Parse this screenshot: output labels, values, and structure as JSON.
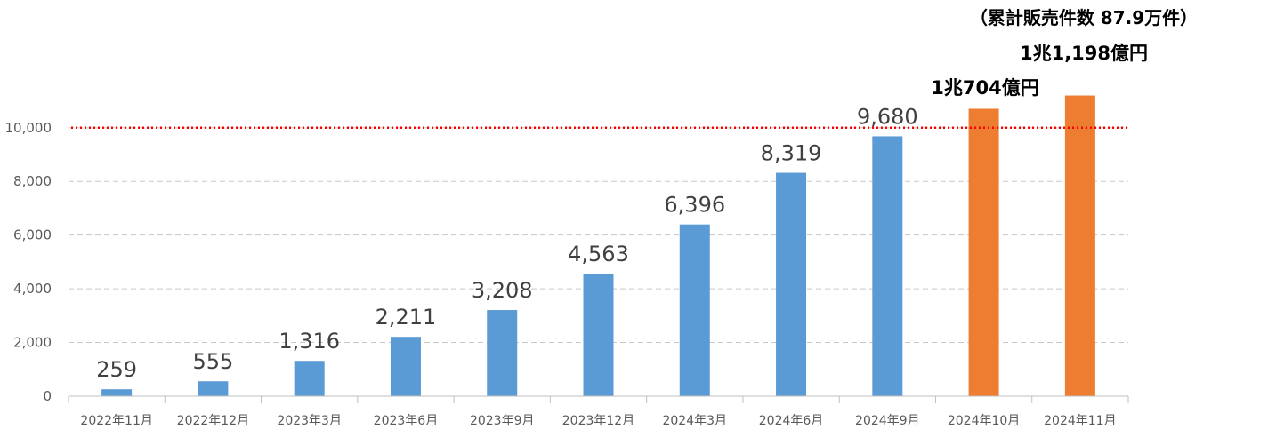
{
  "chart_data": {
    "type": "bar",
    "categories": [
      "2022年11月",
      "2022年12月",
      "2023年3月",
      "2023年6月",
      "2023年9月",
      "2023年12月",
      "2024年3月",
      "2024年6月",
      "2024年9月",
      "2024年10月",
      "2024年11月"
    ],
    "values": [
      259,
      555,
      1316,
      2211,
      3208,
      4563,
      6396,
      8319,
      9680,
      10704,
      11198
    ],
    "data_labels": [
      "259",
      "555",
      "1,316",
      "2,211",
      "3,208",
      "4,563",
      "6,396",
      "8,319",
      "9,680",
      "1兆704億円",
      "1兆1,198億円"
    ],
    "bar_colors": [
      "#5B9BD5",
      "#5B9BD5",
      "#5B9BD5",
      "#5B9BD5",
      "#5B9BD5",
      "#5B9BD5",
      "#5B9BD5",
      "#5B9BD5",
      "#5B9BD5",
      "#ED7D31",
      "#ED7D31"
    ],
    "y_ticks": [
      "0",
      "2,000",
      "4,000",
      "6,000",
      "8,000",
      "10,000"
    ],
    "ylim": [
      0,
      11000
    ],
    "reference_line": {
      "value": 10000,
      "color": "#FF0000",
      "style": "dotted"
    },
    "grid": true,
    "annotation": "（累計販売件数 87.9万件）"
  }
}
